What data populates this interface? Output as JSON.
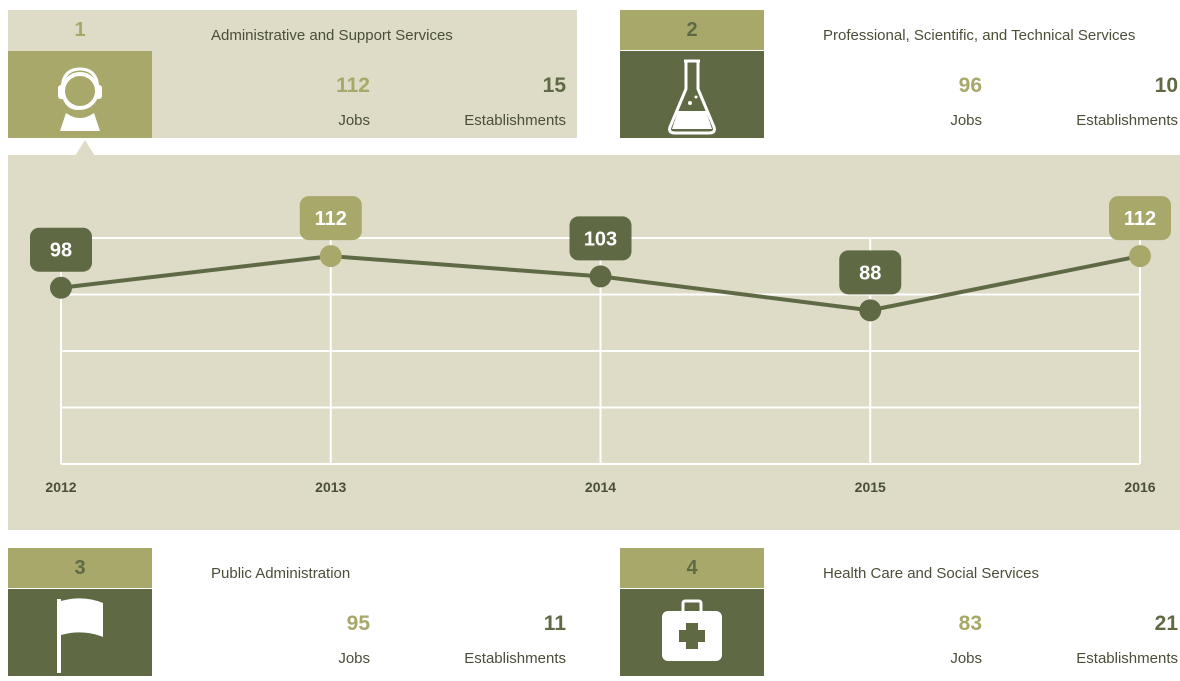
{
  "cards": [
    {
      "rank": 1,
      "title": "Administrative and Support Services",
      "jobs": 112,
      "jobs_label": "Jobs",
      "establishments": 15,
      "establishments_label": "Establishments",
      "icon": "headset",
      "selected": true
    },
    {
      "rank": 2,
      "title": "Professional, Scientific, and Technical Services",
      "jobs": 96,
      "jobs_label": "Jobs",
      "establishments": 10,
      "establishments_label": "Establishments",
      "icon": "flask",
      "selected": false
    },
    {
      "rank": 3,
      "title": "Public Administration",
      "jobs": 95,
      "jobs_label": "Jobs",
      "establishments": 11,
      "establishments_label": "Establishments",
      "icon": "flag",
      "selected": false
    },
    {
      "rank": 4,
      "title": "Health Care and Social Services",
      "jobs": 83,
      "jobs_label": "Jobs",
      "establishments": 21,
      "establishments_label": "Establishments",
      "icon": "medkit",
      "selected": false
    }
  ],
  "chart_data": {
    "type": "line",
    "categories": [
      "2012",
      "2013",
      "2014",
      "2015",
      "2016"
    ],
    "values": [
      98,
      112,
      103,
      88,
      112
    ],
    "color": "#5f6a45",
    "point_colors": [
      "#5f6a45",
      "#a8a86b",
      "#5f6a45",
      "#5f6a45",
      "#a8a86b"
    ],
    "ylim": [
      20,
      120
    ],
    "yticks": [
      20,
      45,
      70,
      95,
      120
    ],
    "grid": true
  }
}
